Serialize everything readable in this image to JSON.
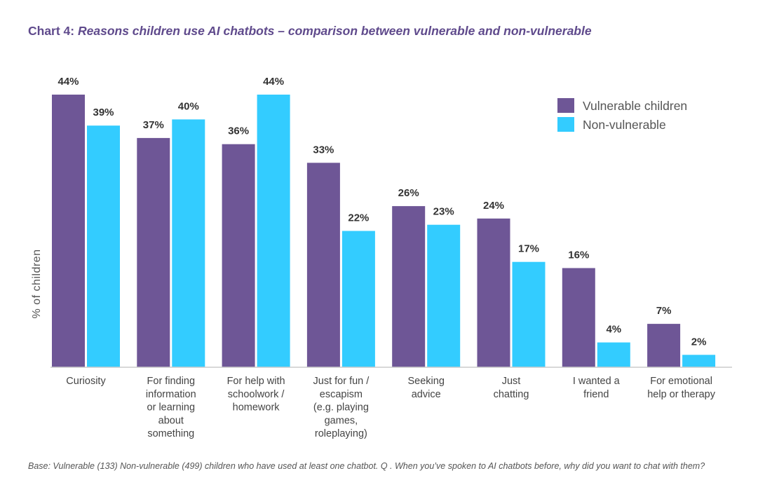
{
  "title": {
    "label": "Chart 4:",
    "text": "Reasons children use AI chatbots – comparison between vulnerable and non-vulnerable"
  },
  "footnote": "Base: Vulnerable (133) Non-vulnerable (499) children who have used at least one chatbot. Q . When you’ve spoken to AI chatbots before, why did you want to chat with them?",
  "chart_data": {
    "type": "bar",
    "ylabel": "% of children",
    "xlabel": "",
    "ylim": [
      0,
      44
    ],
    "grid": false,
    "legend_position": "top-right",
    "categories": [
      [
        "Curiosity"
      ],
      [
        "For finding",
        "information",
        "or learning",
        "about",
        "something"
      ],
      [
        "For help with",
        "schoolwork /",
        "homework"
      ],
      [
        "Just for fun /",
        "escapism",
        "(e.g. playing",
        "games,",
        "roleplaying)"
      ],
      [
        "Seeking",
        "advice"
      ],
      [
        "Just",
        "chatting"
      ],
      [
        "I wanted a",
        "friend"
      ],
      [
        "For emotional",
        "help or therapy"
      ]
    ],
    "series": [
      {
        "name": "Vulnerable children",
        "color": "#6e5696",
        "values": [
          44,
          37,
          36,
          33,
          26,
          24,
          16,
          7
        ],
        "labels": [
          "44%",
          "37%",
          "36%",
          "33%",
          "26%",
          "24%",
          "16%",
          "7%"
        ]
      },
      {
        "name": "Non-vulnerable",
        "color": "#33ccff",
        "values": [
          39,
          40,
          44,
          22,
          23,
          17,
          4,
          2
        ],
        "labels": [
          "39%",
          "40%",
          "44%",
          "22%",
          "23%",
          "17%",
          "4%",
          "2%"
        ]
      }
    ]
  }
}
